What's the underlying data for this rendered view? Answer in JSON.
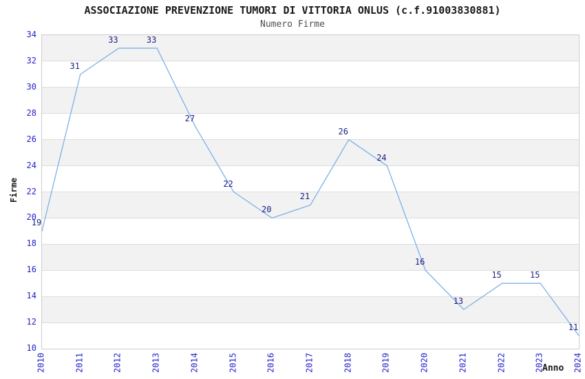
{
  "chart_data": {
    "type": "line",
    "title": "ASSOCIAZIONE PREVENZIONE TUMORI DI VITTORIA ONLUS (c.f.91003830881)",
    "subtitle": "Numero Firme",
    "xlabel": "Anno",
    "ylabel": "Firme",
    "categories": [
      "2010",
      "2011",
      "2012",
      "2013",
      "2014",
      "2015",
      "2016",
      "2017",
      "2018",
      "2019",
      "2020",
      "2021",
      "2022",
      "2023",
      "2024"
    ],
    "values": [
      19,
      31,
      33,
      33,
      27,
      22,
      20,
      21,
      26,
      24,
      16,
      13,
      15,
      15,
      11
    ],
    "ylim": [
      10,
      34
    ],
    "yticks": [
      10,
      12,
      14,
      16,
      18,
      20,
      22,
      24,
      26,
      28,
      30,
      32,
      34
    ],
    "grid": "horizontal-bands-alternating",
    "legend": "none",
    "data_labels_visible": true,
    "colors": {
      "line": "#7cb0e8",
      "tick_label": "#2222cc",
      "data_label": "#1c1c85",
      "band_gray": "#f2f2f2",
      "band_white": "#ffffff",
      "gridline": "#dddddd",
      "plot_border": "#cccccc",
      "title": "#1a1a1a",
      "subtitle": "#4d4d4d",
      "axis_title": "#1a1a1a"
    }
  }
}
